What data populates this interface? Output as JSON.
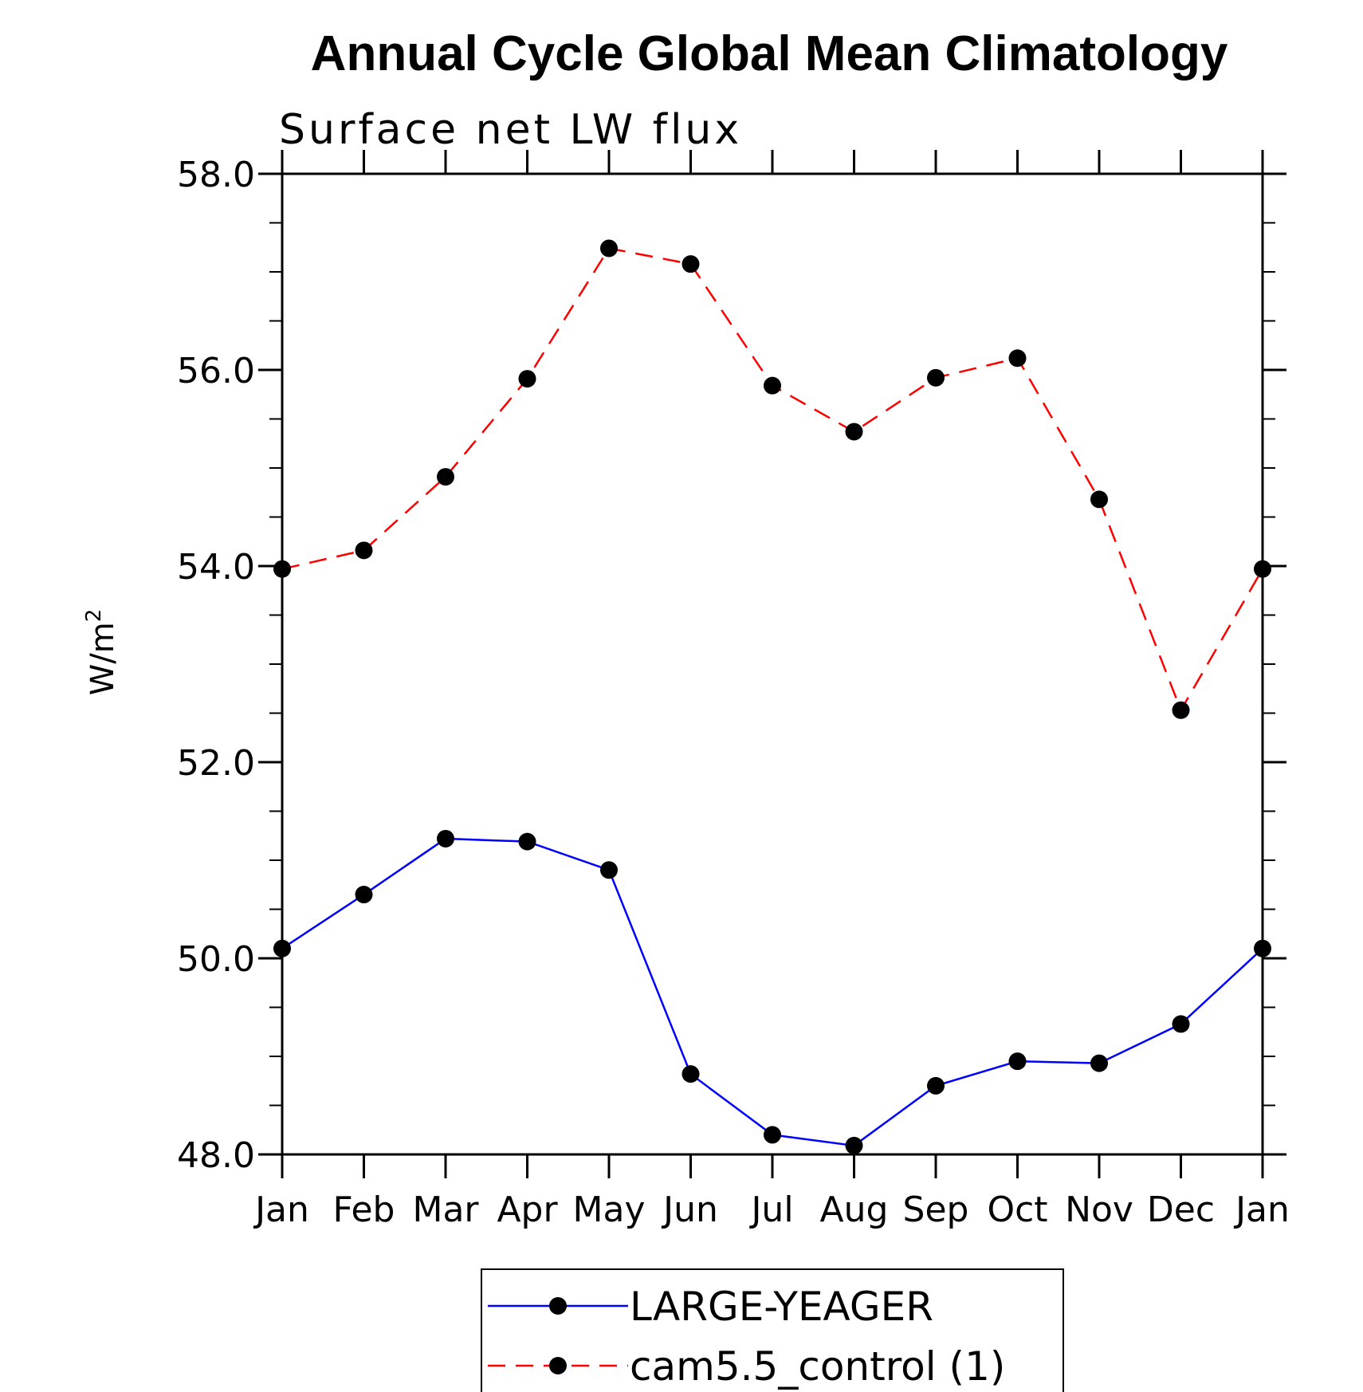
{
  "chart_data": {
    "type": "line",
    "title": "Annual Cycle Global Mean Climatology",
    "subtitle": "Surface net LW flux",
    "ylabel": "W/m",
    "ylabel_superscript": "2",
    "categories": [
      "Jan",
      "Feb",
      "Mar",
      "Apr",
      "May",
      "Jun",
      "Jul",
      "Aug",
      "Sep",
      "Oct",
      "Nov",
      "Dec",
      "Jan"
    ],
    "ylim": [
      48.0,
      58.0
    ],
    "yticks": [
      "48.0",
      "50.0",
      "52.0",
      "54.0",
      "56.0",
      "58.0"
    ],
    "series": [
      {
        "name": "LARGE-YEAGER",
        "color": "#0000ff",
        "dash": "solid",
        "marker": "filled-circle",
        "values": [
          50.1,
          50.65,
          51.22,
          51.19,
          50.9,
          48.82,
          48.2,
          48.09,
          48.7,
          48.95,
          48.93,
          49.33,
          50.1
        ]
      },
      {
        "name": "cam5.5_control (1)",
        "color": "#ff0000",
        "dash": "dashed",
        "marker": "filled-circle",
        "values": [
          53.97,
          54.16,
          54.91,
          55.91,
          57.24,
          57.08,
          55.84,
          55.37,
          55.92,
          56.12,
          54.68,
          52.53,
          53.97
        ]
      }
    ],
    "grid": false,
    "legend_position": "bottom-center"
  }
}
